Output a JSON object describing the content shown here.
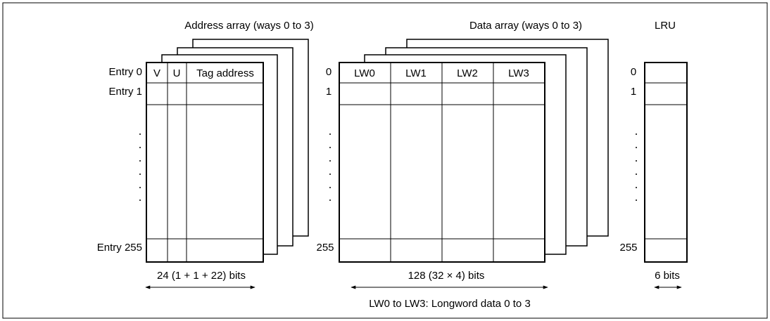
{
  "address_array": {
    "title": "Address array (ways 0 to 3)",
    "entry_first": "Entry 0",
    "entry_second": "Entry 1",
    "entry_last": "Entry 255",
    "col_v": "V",
    "col_u": "U",
    "col_tag": "Tag address",
    "width_label": "24 (1 + 1 + 22) bits"
  },
  "data_array": {
    "title": "Data array (ways 0 to 3)",
    "index_first": "0",
    "index_second": "1",
    "index_last": "255",
    "columns": [
      "LW0",
      "LW1",
      "LW2",
      "LW3"
    ],
    "width_label": "128 (32 × 4) bits",
    "legend": "LW0 to LW3: Longword data 0 to 3"
  },
  "lru": {
    "title": "LRU",
    "index_first": "0",
    "index_second": "1",
    "index_last": "255",
    "width_label": "6 bits"
  }
}
